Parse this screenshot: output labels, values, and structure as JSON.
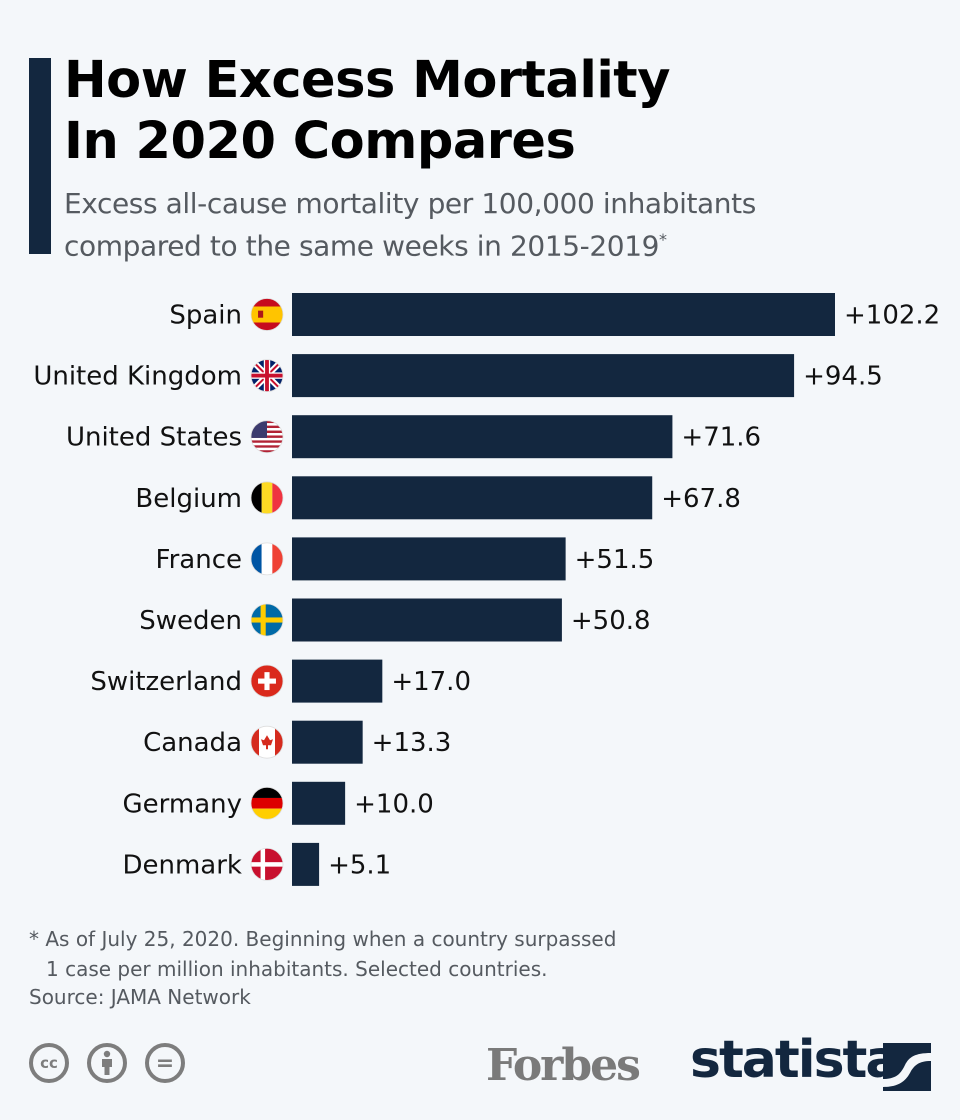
{
  "header": {
    "title_line1": "How Excess Mortality",
    "title_line2": "In 2020 Compares",
    "subtitle_line1": "Excess all-cause mortality per 100,000 inhabitants",
    "subtitle_line2": "compared to the same weeks in 2015-2019",
    "subtitle_mark": "*"
  },
  "colors": {
    "bar": "#13273f",
    "accent": "#13273f",
    "background": "#f4f7fa"
  },
  "chart_data": {
    "type": "bar",
    "orientation": "horizontal",
    "title": "How Excess Mortality In 2020 Compares",
    "subtitle": "Excess all-cause mortality per 100,000 inhabitants compared to the same weeks in 2015-2019*",
    "xlabel": "",
    "ylabel": "",
    "xlim": [
      0,
      102.2
    ],
    "grid": false,
    "categories": [
      "Spain",
      "United Kingdom",
      "United States",
      "Belgium",
      "France",
      "Sweden",
      "Switzerland",
      "Canada",
      "Germany",
      "Denmark"
    ],
    "values": [
      102.2,
      94.5,
      71.6,
      67.8,
      51.5,
      50.8,
      17.0,
      13.3,
      10.0,
      5.1
    ],
    "value_labels": [
      "+102.2",
      "+94.5",
      "+71.6",
      "+67.8",
      "+51.5",
      "+50.8",
      "+17.0",
      "+13.3",
      "+10.0",
      "+5.1"
    ],
    "flag_icons": [
      "flag-spain",
      "flag-united-kingdom",
      "flag-united-states",
      "flag-belgium",
      "flag-france",
      "flag-sweden",
      "flag-switzerland",
      "flag-canada",
      "flag-germany",
      "flag-denmark"
    ]
  },
  "footer": {
    "note_line1": "* As of July 25, 2020. Beginning when a country surpassed",
    "note_line2": "1 case per million inhabitants. Selected countries.",
    "source": "Source: JAMA Network",
    "license_icons": [
      "cc-icon",
      "attribution-icon",
      "no-derivatives-icon"
    ],
    "cc_text": "cc",
    "nd_text": "=",
    "forbes": "Forbes",
    "statista": "statista"
  }
}
